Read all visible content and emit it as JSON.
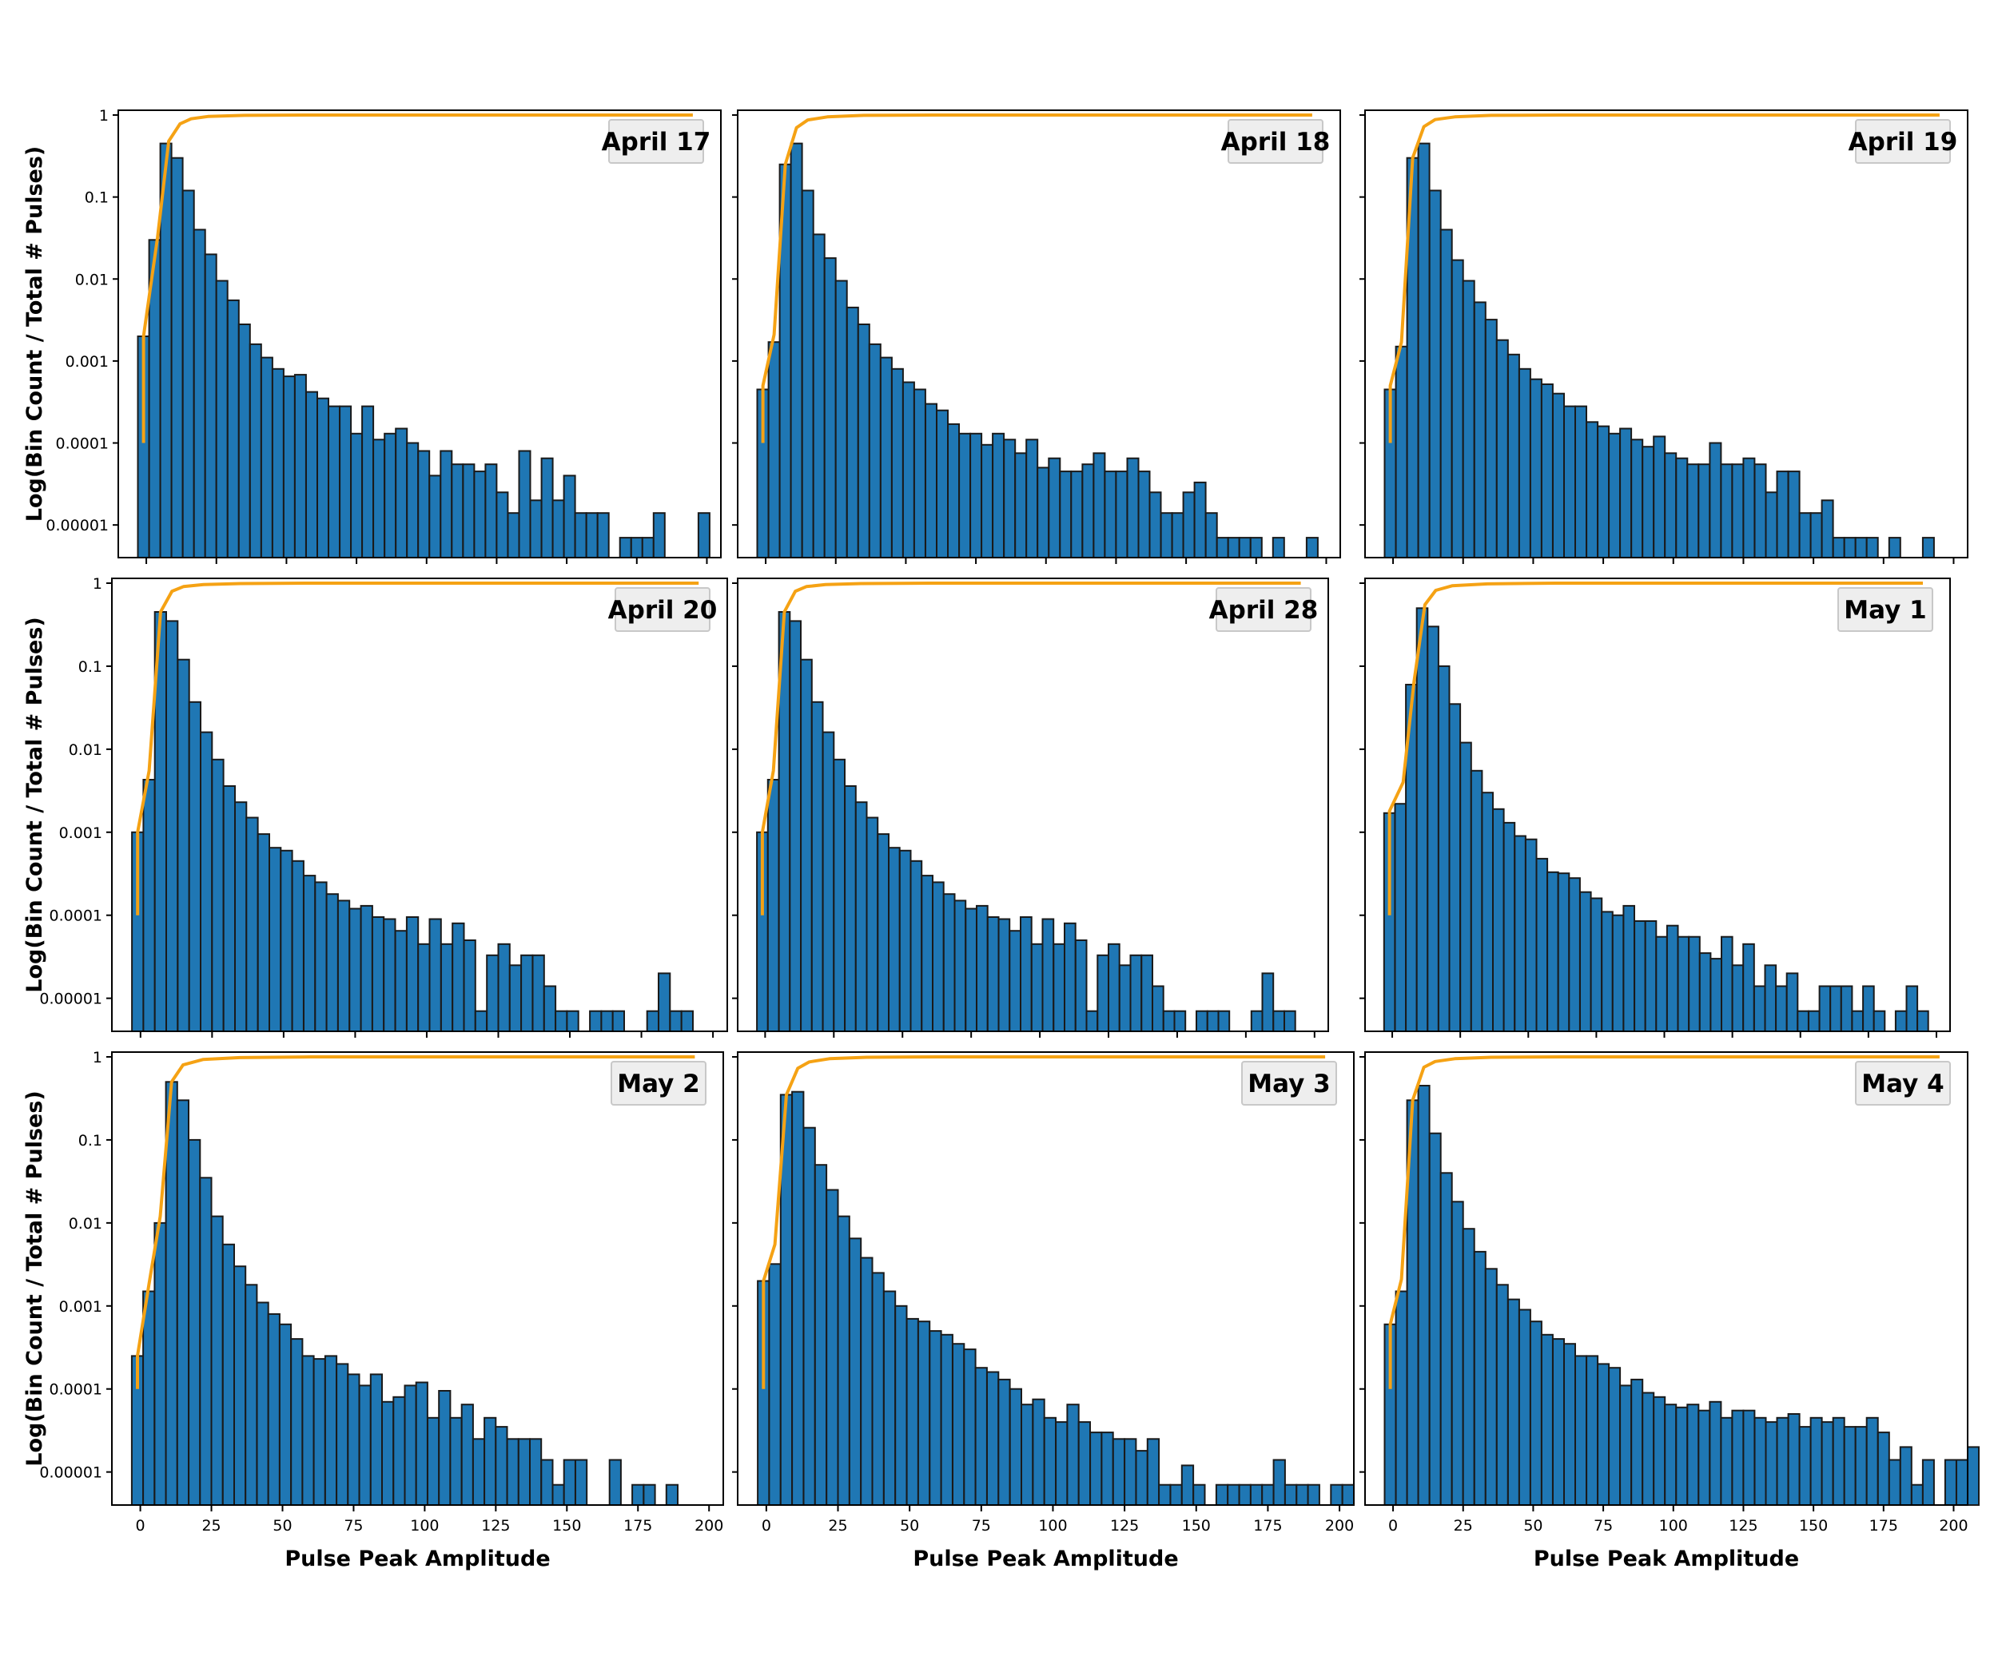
{
  "chart_data": [
    {
      "type": "bar",
      "title": "April 17",
      "ylabel": "Log(Bin Count / Total # Pulses)",
      "xlabel": "",
      "yscale": "log",
      "ylim": [
        4e-06,
        1
      ],
      "xlim": [
        -10,
        205
      ],
      "bin_start": -3,
      "bin_width": 4,
      "values": [
        0.002,
        0.03,
        0.45,
        0.3,
        0.12,
        0.04,
        0.02,
        0.0095,
        0.0055,
        0.0028,
        0.0016,
        0.0011,
        0.0008,
        0.00065,
        0.00068,
        0.00042,
        0.00035,
        0.00028,
        0.00028,
        0.00013,
        0.00028,
        0.00011,
        0.00013,
        0.00015,
        0.0001,
        8e-05,
        4e-05,
        8e-05,
        5.5e-05,
        5.5e-05,
        4.5e-05,
        5.5e-05,
        2.5e-05,
        1.4e-05,
        8e-05,
        2e-05,
        6.5e-05,
        2e-05,
        4e-05,
        1.4e-05,
        1.4e-05,
        1.4e-05,
        0,
        7e-06,
        7e-06,
        7e-06,
        1.4e-05,
        0,
        0,
        0,
        1.4e-05,
        0,
        0,
        0
      ],
      "cdf": [
        [
          -1,
          0.0001
        ],
        [
          -1,
          0.002
        ],
        [
          4,
          0.032
        ],
        [
          8,
          0.48
        ],
        [
          12,
          0.78
        ],
        [
          16,
          0.9
        ],
        [
          22,
          0.96
        ],
        [
          35,
          0.99
        ],
        [
          60,
          1
        ],
        [
          195,
          1
        ]
      ]
    },
    {
      "type": "bar",
      "title": "April 18",
      "ylabel": "",
      "xlabel": "",
      "yscale": "log",
      "ylim": [
        4e-06,
        1
      ],
      "xlim": [
        -10,
        205
      ],
      "bin_start": -3,
      "bin_width": 4,
      "values": [
        0.00045,
        0.0017,
        0.25,
        0.45,
        0.12,
        0.035,
        0.018,
        0.0095,
        0.0045,
        0.0028,
        0.0016,
        0.0011,
        0.0008,
        0.00055,
        0.00045,
        0.0003,
        0.00025,
        0.00017,
        0.00013,
        0.00013,
        9.5e-05,
        0.00013,
        0.00011,
        7.5e-05,
        0.00011,
        5e-05,
        6.5e-05,
        4.5e-05,
        4.5e-05,
        5.5e-05,
        7.5e-05,
        4.5e-05,
        4.5e-05,
        6.5e-05,
        4.5e-05,
        2.5e-05,
        1.4e-05,
        1.4e-05,
        2.5e-05,
        3.3e-05,
        1.4e-05,
        7e-06,
        7e-06,
        7e-06,
        7e-06,
        0,
        7e-06,
        0,
        0,
        7e-06,
        0,
        0,
        0,
        0
      ],
      "cdf": [
        [
          -1,
          0.0001
        ],
        [
          -1,
          0.0005
        ],
        [
          3,
          0.0021
        ],
        [
          7,
          0.25
        ],
        [
          11,
          0.7
        ],
        [
          15,
          0.87
        ],
        [
          22,
          0.95
        ],
        [
          35,
          0.99
        ],
        [
          60,
          1
        ],
        [
          195,
          1
        ]
      ]
    },
    {
      "type": "bar",
      "title": "April 19",
      "ylabel": "",
      "xlabel": "",
      "yscale": "log",
      "ylim": [
        4e-06,
        1
      ],
      "xlim": [
        -10,
        205
      ],
      "bin_start": -3,
      "bin_width": 4,
      "values": [
        0.00045,
        0.0015,
        0.3,
        0.45,
        0.12,
        0.04,
        0.017,
        0.0095,
        0.0052,
        0.0032,
        0.0018,
        0.0012,
        0.0008,
        0.0006,
        0.00052,
        0.0004,
        0.00028,
        0.00028,
        0.00018,
        0.00016,
        0.00013,
        0.00015,
        0.00011,
        9e-05,
        0.00012,
        7.5e-05,
        6.5e-05,
        5.5e-05,
        5.5e-05,
        0.0001,
        5.5e-05,
        5.5e-05,
        6.5e-05,
        5.5e-05,
        2.5e-05,
        4.5e-05,
        4.5e-05,
        1.4e-05,
        1.4e-05,
        2e-05,
        7e-06,
        7e-06,
        7e-06,
        7e-06,
        0,
        7e-06,
        0,
        0,
        7e-06,
        0,
        0,
        0,
        0,
        0
      ],
      "cdf": [
        [
          -1,
          0.0001
        ],
        [
          -1,
          0.0005
        ],
        [
          3,
          0.0017
        ],
        [
          7,
          0.3
        ],
        [
          11,
          0.72
        ],
        [
          15,
          0.88
        ],
        [
          22,
          0.95
        ],
        [
          35,
          0.99
        ],
        [
          60,
          1
        ],
        [
          195,
          1
        ]
      ]
    },
    {
      "type": "bar",
      "title": "April 20",
      "ylabel": "Log(Bin Count / Total # Pulses)",
      "xlabel": "",
      "yscale": "log",
      "ylim": [
        4e-06,
        1
      ],
      "xlim": [
        -10,
        205
      ],
      "bin_start": -3,
      "bin_width": 4,
      "values": [
        0.001,
        0.0043,
        0.45,
        0.35,
        0.12,
        0.037,
        0.016,
        0.0075,
        0.0036,
        0.0023,
        0.0015,
        0.00095,
        0.00065,
        0.0006,
        0.00045,
        0.0003,
        0.00025,
        0.00018,
        0.00015,
        0.00012,
        0.00013,
        9.5e-05,
        9e-05,
        6.5e-05,
        9.5e-05,
        4.5e-05,
        9e-05,
        4.5e-05,
        8e-05,
        5e-05,
        7e-06,
        3.3e-05,
        4.5e-05,
        2.5e-05,
        3.3e-05,
        3.3e-05,
        1.4e-05,
        7e-06,
        7e-06,
        0,
        7e-06,
        7e-06,
        7e-06,
        0,
        0,
        7e-06,
        2e-05,
        7e-06,
        7e-06,
        0,
        0,
        0,
        0,
        0
      ],
      "cdf": [
        [
          -1,
          0.0001
        ],
        [
          -1,
          0.001
        ],
        [
          3,
          0.0055
        ],
        [
          7,
          0.45
        ],
        [
          11,
          0.8
        ],
        [
          15,
          0.91
        ],
        [
          22,
          0.96
        ],
        [
          35,
          0.99
        ],
        [
          60,
          1
        ],
        [
          195,
          1
        ]
      ]
    },
    {
      "type": "bar",
      "title": "April 28",
      "ylabel": "",
      "xlabel": "",
      "yscale": "log",
      "ylim": [
        4e-06,
        1
      ],
      "xlim": [
        -10,
        205
      ],
      "bin_start": -3,
      "bin_width": 4,
      "values": [
        0.001,
        0.0043,
        0.45,
        0.35,
        0.12,
        0.037,
        0.016,
        0.0075,
        0.0036,
        0.0023,
        0.0015,
        0.00095,
        0.00065,
        0.0006,
        0.00045,
        0.0003,
        0.00025,
        0.00018,
        0.00015,
        0.00012,
        0.00013,
        9.5e-05,
        9e-05,
        6.5e-05,
        9.5e-05,
        4.5e-05,
        9e-05,
        4.5e-05,
        8e-05,
        5e-05,
        7e-06,
        3.3e-05,
        4.5e-05,
        2.5e-05,
        3.3e-05,
        3.3e-05,
        1.4e-05,
        7e-06,
        7e-06,
        0,
        7e-06,
        7e-06,
        7e-06,
        0,
        0,
        7e-06,
        2e-05,
        7e-06,
        7e-06,
        0,
        0,
        0,
        0,
        0
      ],
      "cdf": [
        [
          -1,
          0.0001
        ],
        [
          -1,
          0.001
        ],
        [
          3,
          0.0055
        ],
        [
          7,
          0.45
        ],
        [
          11,
          0.8
        ],
        [
          15,
          0.91
        ],
        [
          22,
          0.96
        ],
        [
          35,
          0.99
        ],
        [
          60,
          1
        ],
        [
          195,
          1
        ]
      ]
    },
    {
      "type": "bar",
      "title": "May 1",
      "ylabel": "",
      "xlabel": "",
      "yscale": "log",
      "ylim": [
        4e-06,
        1
      ],
      "xlim": [
        -10,
        205
      ],
      "bin_start": -3,
      "bin_width": 4,
      "values": [
        0.0017,
        0.0022,
        0.06,
        0.5,
        0.3,
        0.1,
        0.035,
        0.012,
        0.0055,
        0.003,
        0.0019,
        0.0013,
        0.0009,
        0.00082,
        0.00048,
        0.00033,
        0.00032,
        0.00028,
        0.00019,
        0.00016,
        0.00011,
        0.0001,
        0.00013,
        8.5e-05,
        8.5e-05,
        5.5e-05,
        7.5e-05,
        5.5e-05,
        5.5e-05,
        3.5e-05,
        3e-05,
        5.5e-05,
        2.5e-05,
        4.5e-05,
        1.4e-05,
        2.5e-05,
        1.4e-05,
        2e-05,
        7e-06,
        7e-06,
        1.4e-05,
        1.4e-05,
        1.4e-05,
        7e-06,
        1.4e-05,
        7e-06,
        0,
        7e-06,
        1.4e-05,
        7e-06,
        0,
        0,
        0,
        0
      ],
      "cdf": [
        [
          -1,
          0.0001
        ],
        [
          -1,
          0.0018
        ],
        [
          4,
          0.004
        ],
        [
          8,
          0.065
        ],
        [
          12,
          0.55
        ],
        [
          16,
          0.82
        ],
        [
          22,
          0.93
        ],
        [
          35,
          0.98
        ],
        [
          60,
          1
        ],
        [
          195,
          1
        ]
      ]
    },
    {
      "type": "bar",
      "title": "May 2",
      "ylabel": "Log(Bin Count / Total # Pulses)",
      "xlabel": "Pulse Peak Amplitude",
      "yscale": "log",
      "ylim": [
        4e-06,
        1
      ],
      "xlim": [
        -10,
        205
      ],
      "bin_start": -3,
      "bin_width": 4,
      "values": [
        0.00025,
        0.0015,
        0.01,
        0.5,
        0.3,
        0.1,
        0.035,
        0.012,
        0.0055,
        0.003,
        0.0018,
        0.0011,
        0.0008,
        0.0006,
        0.0004,
        0.00025,
        0.00023,
        0.00025,
        0.0002,
        0.00015,
        0.00011,
        0.00015,
        7e-05,
        8e-05,
        0.00011,
        0.00012,
        4.5e-05,
        9.5e-05,
        4.5e-05,
        6.5e-05,
        2.5e-05,
        4.5e-05,
        3.5e-05,
        2.5e-05,
        2.5e-05,
        2.5e-05,
        1.4e-05,
        7e-06,
        1.4e-05,
        1.4e-05,
        0,
        0,
        1.4e-05,
        0,
        7e-06,
        7e-06,
        0,
        7e-06,
        0,
        0,
        0,
        0,
        0,
        0
      ],
      "cdf": [
        [
          -1,
          0.0001
        ],
        [
          -1,
          0.00025
        ],
        [
          3,
          0.0018
        ],
        [
          7,
          0.012
        ],
        [
          11,
          0.5
        ],
        [
          15,
          0.8
        ],
        [
          22,
          0.93
        ],
        [
          35,
          0.98
        ],
        [
          60,
          1
        ],
        [
          195,
          1
        ]
      ]
    },
    {
      "type": "bar",
      "title": "May 3",
      "ylabel": "",
      "xlabel": "Pulse Peak Amplitude",
      "yscale": "log",
      "ylim": [
        4e-06,
        1
      ],
      "xlim": [
        -10,
        205
      ],
      "bin_start": -3,
      "bin_width": 4,
      "values": [
        0.002,
        0.0032,
        0.35,
        0.38,
        0.14,
        0.05,
        0.025,
        0.012,
        0.0065,
        0.0038,
        0.0025,
        0.0015,
        0.001,
        0.0007,
        0.00065,
        0.0005,
        0.00045,
        0.00035,
        0.0003,
        0.00018,
        0.00016,
        0.00013,
        0.0001,
        6.5e-05,
        7.5e-05,
        4.5e-05,
        4e-05,
        6.5e-05,
        4e-05,
        3e-05,
        3e-05,
        2.5e-05,
        2.5e-05,
        1.8e-05,
        2.5e-05,
        7e-06,
        7e-06,
        1.2e-05,
        7e-06,
        0,
        7e-06,
        7e-06,
        7e-06,
        7e-06,
        7e-06,
        1.4e-05,
        7e-06,
        7e-06,
        7e-06,
        0,
        7e-06,
        7e-06,
        0,
        0
      ],
      "cdf": [
        [
          -1,
          0.0001
        ],
        [
          -1,
          0.002
        ],
        [
          3,
          0.0055
        ],
        [
          7,
          0.35
        ],
        [
          11,
          0.73
        ],
        [
          15,
          0.87
        ],
        [
          22,
          0.95
        ],
        [
          35,
          0.99
        ],
        [
          60,
          1
        ],
        [
          195,
          1
        ]
      ]
    },
    {
      "type": "bar",
      "title": "May 4",
      "ylabel": "",
      "xlabel": "Pulse Peak Amplitude",
      "yscale": "log",
      "ylim": [
        4e-06,
        1
      ],
      "xlim": [
        -10,
        205
      ],
      "bin_start": -3,
      "bin_width": 4,
      "values": [
        0.0006,
        0.0015,
        0.3,
        0.45,
        0.12,
        0.04,
        0.018,
        0.0085,
        0.0045,
        0.0028,
        0.0018,
        0.0012,
        0.0009,
        0.00065,
        0.00045,
        0.0004,
        0.00035,
        0.00025,
        0.00025,
        0.0002,
        0.00018,
        0.00011,
        0.00013,
        9e-05,
        8e-05,
        6.5e-05,
        6e-05,
        6.5e-05,
        5.5e-05,
        7e-05,
        4.5e-05,
        5.5e-05,
        5.5e-05,
        4.5e-05,
        4e-05,
        4.5e-05,
        5e-05,
        3.5e-05,
        4.5e-05,
        4e-05,
        4.5e-05,
        3.5e-05,
        3.5e-05,
        4.5e-05,
        3e-05,
        1.4e-05,
        2e-05,
        7e-06,
        1.4e-05,
        0,
        1.4e-05,
        1.4e-05,
        2e-05,
        0
      ],
      "cdf": [
        [
          -1,
          0.0001
        ],
        [
          -1,
          0.0006
        ],
        [
          3,
          0.0021
        ],
        [
          7,
          0.3
        ],
        [
          11,
          0.75
        ],
        [
          15,
          0.88
        ],
        [
          22,
          0.95
        ],
        [
          35,
          0.99
        ],
        [
          60,
          1
        ],
        [
          195,
          1
        ]
      ]
    }
  ],
  "y_tick_labels": [
    "1",
    "0.1",
    "0.01",
    "0.001",
    "0.0001",
    "0.00001"
  ],
  "x_tick_labels": [
    "0",
    "25",
    "50",
    "75",
    "100",
    "125",
    "150",
    "175",
    "200"
  ],
  "colors": {
    "bars": "#1f77b4",
    "bar_edge": "#1a1a1a",
    "cdf": "#f5a214"
  }
}
